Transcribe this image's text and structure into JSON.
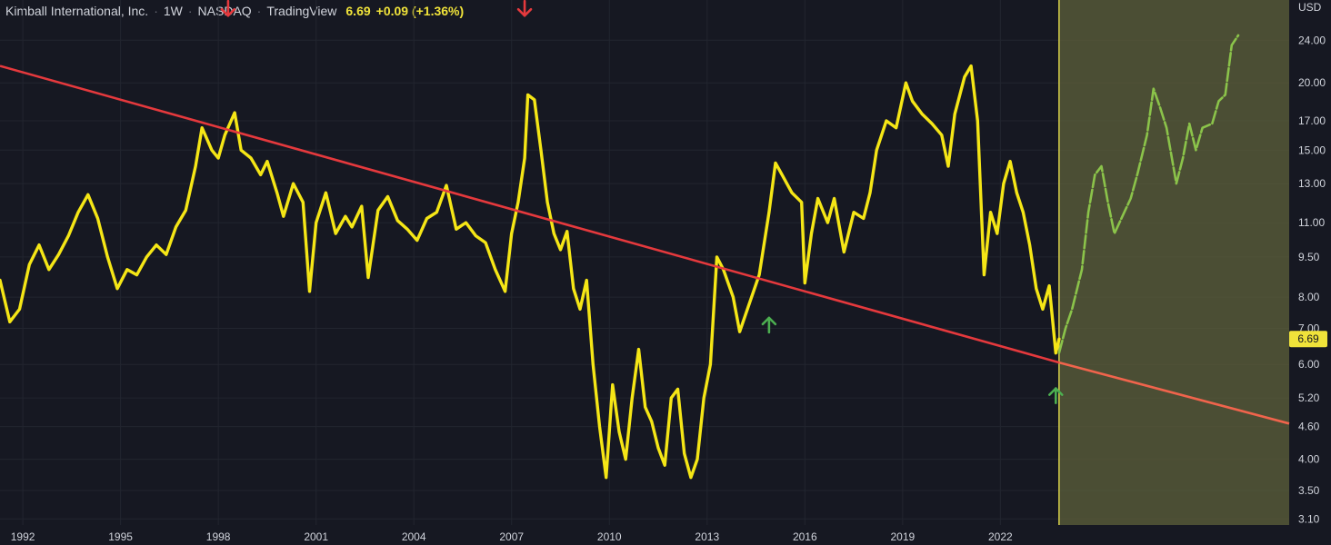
{
  "header": {
    "symbol": "Kimball International, Inc.",
    "interval": "1W",
    "exchange": "NASDAQ",
    "source": "TradingView",
    "last_price": "6.69",
    "change": "+0.09 (+1.36%)"
  },
  "colors": {
    "background": "#161822",
    "price_line": "#f5e616",
    "forecast_line": "#8bc34a",
    "trendline": "#e5393d",
    "trendline_extension": "#f0644c",
    "highlight_zone": "#5b5e3a",
    "down_arrow": "#e5393d",
    "up_arrow": "#4caf50",
    "price_tag": "#f0e33a",
    "axis_text": "#d1d4dc",
    "grid": "#22252f"
  },
  "chart_data": {
    "type": "line",
    "yscale": "log",
    "currency": "USD",
    "x_ticks": [
      "1992",
      "1995",
      "1998",
      "2001",
      "2004",
      "2007",
      "2010",
      "2013",
      "2016",
      "2019",
      "2022"
    ],
    "y_ticks": [
      "24.00",
      "20.00",
      "17.00",
      "15.00",
      "13.00",
      "11.00",
      "9.50",
      "8.00",
      "7.00",
      "6.00",
      "5.20",
      "4.60",
      "4.00",
      "3.50",
      "3.10"
    ],
    "current_price_label": "6.69",
    "xlim": [
      1991.3,
      2029.3
    ],
    "ylim": [
      3.02,
      28.5
    ],
    "series": [
      {
        "role": "price",
        "points": [
          [
            1991.3,
            8.6
          ],
          [
            1991.6,
            7.2
          ],
          [
            1991.9,
            7.6
          ],
          [
            1992.2,
            9.2
          ],
          [
            1992.5,
            10.0
          ],
          [
            1992.8,
            9.0
          ],
          [
            1993.1,
            9.6
          ],
          [
            1993.4,
            10.4
          ],
          [
            1993.7,
            11.5
          ],
          [
            1994.0,
            12.4
          ],
          [
            1994.3,
            11.2
          ],
          [
            1994.6,
            9.5
          ],
          [
            1994.9,
            8.3
          ],
          [
            1995.2,
            9.0
          ],
          [
            1995.5,
            8.8
          ],
          [
            1995.8,
            9.5
          ],
          [
            1996.1,
            10.0
          ],
          [
            1996.4,
            9.6
          ],
          [
            1996.7,
            10.8
          ],
          [
            1997.0,
            11.6
          ],
          [
            1997.3,
            14.0
          ],
          [
            1997.5,
            16.5
          ],
          [
            1997.8,
            15.0
          ],
          [
            1998.0,
            14.5
          ],
          [
            1998.2,
            16.0
          ],
          [
            1998.5,
            17.6
          ],
          [
            1998.7,
            15.0
          ],
          [
            1999.0,
            14.5
          ],
          [
            1999.3,
            13.5
          ],
          [
            1999.5,
            14.3
          ],
          [
            1999.8,
            12.5
          ],
          [
            2000.0,
            11.3
          ],
          [
            2000.3,
            13.0
          ],
          [
            2000.6,
            12.0
          ],
          [
            2000.8,
            8.2
          ],
          [
            2001.0,
            11.0
          ],
          [
            2001.3,
            12.5
          ],
          [
            2001.6,
            10.5
          ],
          [
            2001.9,
            11.3
          ],
          [
            2002.1,
            10.8
          ],
          [
            2002.4,
            11.8
          ],
          [
            2002.6,
            8.7
          ],
          [
            2002.9,
            11.6
          ],
          [
            2003.2,
            12.3
          ],
          [
            2003.5,
            11.1
          ],
          [
            2003.8,
            10.7
          ],
          [
            2004.1,
            10.2
          ],
          [
            2004.4,
            11.2
          ],
          [
            2004.7,
            11.5
          ],
          [
            2005.0,
            12.9
          ],
          [
            2005.3,
            10.7
          ],
          [
            2005.6,
            11.0
          ],
          [
            2005.9,
            10.4
          ],
          [
            2006.2,
            10.1
          ],
          [
            2006.5,
            9.0
          ],
          [
            2006.8,
            8.2
          ],
          [
            2007.0,
            10.5
          ],
          [
            2007.2,
            12.0
          ],
          [
            2007.4,
            14.5
          ],
          [
            2007.5,
            19.0
          ],
          [
            2007.7,
            18.6
          ],
          [
            2007.9,
            15.0
          ],
          [
            2008.1,
            12.0
          ],
          [
            2008.3,
            10.5
          ],
          [
            2008.5,
            9.8
          ],
          [
            2008.7,
            10.6
          ],
          [
            2008.9,
            8.3
          ],
          [
            2009.1,
            7.6
          ],
          [
            2009.3,
            8.6
          ],
          [
            2009.5,
            6.0
          ],
          [
            2009.7,
            4.6
          ],
          [
            2009.9,
            3.7
          ],
          [
            2010.1,
            5.5
          ],
          [
            2010.3,
            4.5
          ],
          [
            2010.5,
            4.0
          ],
          [
            2010.7,
            5.2
          ],
          [
            2010.9,
            6.4
          ],
          [
            2011.1,
            5.0
          ],
          [
            2011.3,
            4.7
          ],
          [
            2011.5,
            4.2
          ],
          [
            2011.7,
            3.9
          ],
          [
            2011.9,
            5.2
          ],
          [
            2012.1,
            5.4
          ],
          [
            2012.3,
            4.1
          ],
          [
            2012.5,
            3.7
          ],
          [
            2012.7,
            4.0
          ],
          [
            2012.9,
            5.2
          ],
          [
            2013.1,
            6.0
          ],
          [
            2013.3,
            9.5
          ],
          [
            2013.5,
            9.0
          ],
          [
            2013.8,
            8.0
          ],
          [
            2014.0,
            6.9
          ],
          [
            2014.3,
            7.8
          ],
          [
            2014.6,
            8.8
          ],
          [
            2014.9,
            11.5
          ],
          [
            2015.1,
            14.2
          ],
          [
            2015.3,
            13.5
          ],
          [
            2015.6,
            12.5
          ],
          [
            2015.9,
            12.0
          ],
          [
            2016.0,
            8.5
          ],
          [
            2016.2,
            10.5
          ],
          [
            2016.4,
            12.2
          ],
          [
            2016.7,
            11.0
          ],
          [
            2016.9,
            12.2
          ],
          [
            2017.2,
            9.7
          ],
          [
            2017.5,
            11.5
          ],
          [
            2017.8,
            11.2
          ],
          [
            2018.0,
            12.5
          ],
          [
            2018.2,
            15.0
          ],
          [
            2018.5,
            17.0
          ],
          [
            2018.8,
            16.5
          ],
          [
            2019.1,
            20.0
          ],
          [
            2019.3,
            18.5
          ],
          [
            2019.6,
            17.5
          ],
          [
            2019.9,
            16.8
          ],
          [
            2020.2,
            16.0
          ],
          [
            2020.4,
            14.0
          ],
          [
            2020.6,
            17.5
          ],
          [
            2020.9,
            20.5
          ],
          [
            2021.1,
            21.5
          ],
          [
            2021.3,
            17.0
          ],
          [
            2021.5,
            8.8
          ],
          [
            2021.7,
            11.5
          ],
          [
            2021.9,
            10.5
          ],
          [
            2022.1,
            13.0
          ],
          [
            2022.3,
            14.3
          ],
          [
            2022.5,
            12.5
          ],
          [
            2022.7,
            11.5
          ],
          [
            2022.9,
            10.0
          ],
          [
            2023.1,
            8.3
          ],
          [
            2023.3,
            7.6
          ],
          [
            2023.5,
            8.4
          ],
          [
            2023.7,
            6.3
          ],
          [
            2023.8,
            6.69
          ]
        ]
      },
      {
        "role": "forecast",
        "points": [
          [
            2023.8,
            6.3
          ],
          [
            2024.0,
            7.0
          ],
          [
            2024.2,
            7.6
          ],
          [
            2024.5,
            9.0
          ],
          [
            2024.7,
            11.5
          ],
          [
            2024.9,
            13.5
          ],
          [
            2025.1,
            14.0
          ],
          [
            2025.3,
            12.0
          ],
          [
            2025.5,
            10.5
          ],
          [
            2025.8,
            11.5
          ],
          [
            2026.0,
            12.2
          ],
          [
            2026.2,
            13.5
          ],
          [
            2026.5,
            16.0
          ],
          [
            2026.7,
            19.5
          ],
          [
            2026.9,
            18.0
          ],
          [
            2027.1,
            16.5
          ],
          [
            2027.4,
            13.0
          ],
          [
            2027.6,
            14.5
          ],
          [
            2027.8,
            16.8
          ],
          [
            2028.0,
            15.0
          ],
          [
            2028.2,
            16.5
          ],
          [
            2028.5,
            16.8
          ],
          [
            2028.7,
            18.5
          ],
          [
            2028.9,
            19.0
          ],
          [
            2029.1,
            23.5
          ],
          [
            2029.3,
            24.5
          ]
        ]
      }
    ],
    "trendline": {
      "start": [
        1991.3,
        21.5
      ],
      "end": [
        2023.8,
        6.05
      ],
      "extend_to": [
        2036.4,
        4.66
      ]
    },
    "highlight_zone": {
      "x_from": 2023.8,
      "x_to": 2036.4
    },
    "markers": [
      {
        "type": "down",
        "x": 1998.3,
        "y": 27.5
      },
      {
        "type": "down",
        "x": 2007.4,
        "y": 27.5
      },
      {
        "type": "up",
        "x": 2014.9,
        "y": 7.1
      },
      {
        "type": "up",
        "x": 2023.7,
        "y": 5.25
      }
    ]
  }
}
